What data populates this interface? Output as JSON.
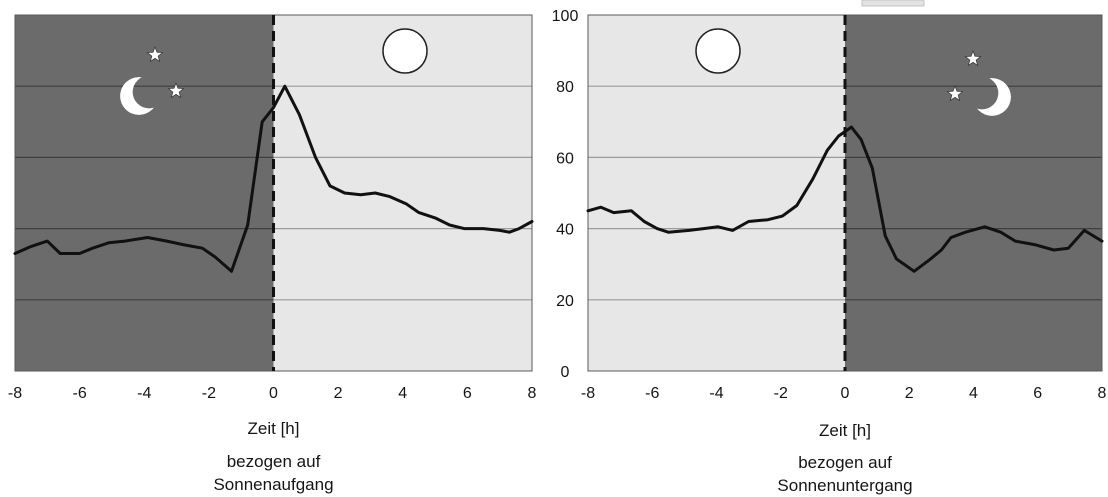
{
  "chart_data": [
    {
      "type": "line",
      "xlabel": "Zeit [h]",
      "caption": [
        "bezogen auf",
        "Sonnenaufgang"
      ],
      "xlim": [
        -8,
        8
      ],
      "xticks": [
        -8,
        -6,
        -4,
        -2,
        0,
        2,
        4,
        6,
        8
      ],
      "ylim": [
        0,
        100
      ],
      "yticks": [
        0,
        20,
        40,
        60,
        80,
        100
      ],
      "ygrid": [
        20,
        40,
        60,
        80
      ],
      "grid": true,
      "reference_line_x": 0,
      "regions": [
        {
          "x": [
            -8,
            0
          ],
          "color": "#6b6b6b",
          "icons": [
            "moon-icon",
            "star-icon",
            "star-icon"
          ]
        },
        {
          "x": [
            0,
            8
          ],
          "color": "#e7e7e7",
          "icons": [
            "sun-icon"
          ]
        }
      ],
      "series": [
        {
          "color": "#111111",
          "x": [
            -8,
            -7.5,
            -7,
            -6.6,
            -6,
            -5.6,
            -5.1,
            -4.6,
            -3.9,
            -3.3,
            -2.8,
            -2.2,
            -1.8,
            -1.3,
            -0.8,
            -0.35,
            0,
            0.35,
            0.8,
            1.3,
            1.75,
            2.2,
            2.7,
            3.15,
            3.6,
            4.1,
            4.5,
            5,
            5.45,
            5.9,
            6.5,
            7,
            7.3,
            7.6,
            8
          ],
          "y": [
            33,
            35,
            36.5,
            33,
            33,
            34.5,
            36,
            36.5,
            37.5,
            36.5,
            35.5,
            34.5,
            32,
            28,
            41,
            70,
            74,
            80,
            72,
            60,
            52,
            50,
            49.5,
            50,
            49,
            47,
            44.5,
            43,
            41,
            40,
            40,
            39.5,
            39,
            40,
            42
          ]
        }
      ]
    },
    {
      "type": "line",
      "xlabel": "Zeit [h]",
      "caption": [
        "bezogen auf",
        "Sonnenuntergang"
      ],
      "xlim": [
        -8,
        8
      ],
      "xticks": [
        -8,
        -6,
        -4,
        -2,
        0,
        2,
        4,
        6,
        8
      ],
      "ylim": [
        0,
        100
      ],
      "ygrid": [
        20,
        40,
        60,
        80
      ],
      "grid": true,
      "reference_line_x": 0,
      "regions": [
        {
          "x": [
            -8,
            0
          ],
          "color": "#e7e7e7",
          "icons": [
            "sun-icon"
          ]
        },
        {
          "x": [
            0,
            8
          ],
          "color": "#6b6b6b",
          "icons": [
            "moon-icon",
            "star-icon",
            "star-icon"
          ]
        }
      ],
      "series": [
        {
          "color": "#111111",
          "x": [
            -8,
            -7.6,
            -7.2,
            -6.65,
            -6.25,
            -5.85,
            -5.5,
            -4.85,
            -4.4,
            -3.95,
            -3.5,
            -3,
            -2.4,
            -1.95,
            -1.5,
            -1,
            -0.55,
            -0.2,
            0.2,
            0.5,
            0.85,
            1.25,
            1.6,
            2.15,
            2.6,
            3,
            3.3,
            3.75,
            4.35,
            4.85,
            5.3,
            5.9,
            6.5,
            6.95,
            7.45,
            8
          ],
          "y": [
            45,
            46,
            44.5,
            45,
            42,
            40,
            39,
            39.5,
            40,
            40.5,
            39.5,
            42,
            42.5,
            43.5,
            46.5,
            54,
            62,
            66,
            68.5,
            65,
            57,
            38,
            31.5,
            28,
            31,
            34,
            37.5,
            39,
            40.5,
            39,
            36.5,
            35.5,
            34,
            34.5,
            39.5,
            36.5
          ]
        }
      ]
    }
  ]
}
